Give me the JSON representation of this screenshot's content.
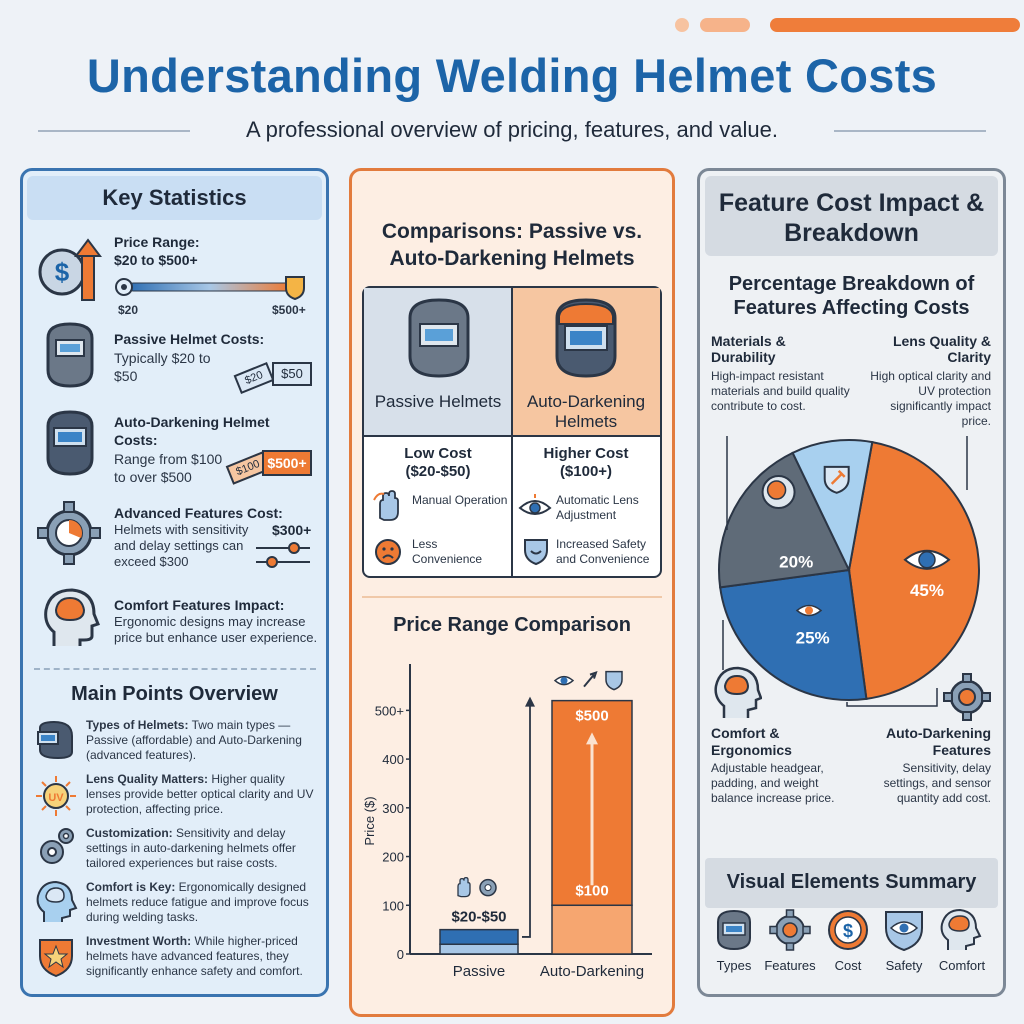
{
  "header": {
    "title": "Understanding Welding Helmet Costs",
    "subtitle": "A professional overview of pricing, features, and value."
  },
  "key_stats": {
    "title": "Key Statistics",
    "price_range": {
      "label": "Price Range:",
      "value": "$20 to $500+",
      "min": "$20",
      "max": "$500+"
    },
    "passive": {
      "label": "Passive Helmet Costs:",
      "text": "Typically $20 to $50",
      "tag1": "$20",
      "tag2": "$50"
    },
    "auto": {
      "label_bold": "Auto-Darkening Helmet Costs:",
      "text": "Range from $100 to over $500",
      "tag1": "$100",
      "tag2": "$500+"
    },
    "advanced": {
      "label": "Advanced Features Cost:",
      "text": "Helmets with sensitivity and delay settings can exceed $300",
      "tag": "$300+"
    },
    "comfort": {
      "label": "Comfort Features Impact:",
      "text": "Ergonomic designs may increase price but enhance user experience."
    }
  },
  "main_points": {
    "title": "Main Points Overview",
    "items": [
      {
        "bold": "Types of Helmets:",
        "text": " Two main types — Passive (affordable) and Auto-Darkening (advanced features)."
      },
      {
        "bold": "Lens Quality Matters:",
        "text": " Higher quality lenses provide better optical clarity and UV protection, affecting price.",
        "icon_text": "UV"
      },
      {
        "bold": "Customization:",
        "text": " Sensitivity and delay settings in auto-darkening helmets offer tailored experiences but raise costs."
      },
      {
        "bold": "Comfort is Key:",
        "text": " Ergonomically designed helmets reduce fatigue and improve focus during welding tasks."
      },
      {
        "bold": "Investment Worth:",
        "text": " While higher-priced helmets have advanced features, they significantly enhance safety and comfort."
      }
    ]
  },
  "comparison": {
    "title": "Comparisons: Passive vs. Auto-Darkening Helmets",
    "passive": {
      "name": "Passive Helmets",
      "cost": "Low Cost",
      "range": "($20-$50)",
      "f1": "Manual Operation",
      "f2": "Less Convenience"
    },
    "auto": {
      "name": "Auto-Darkening Helmets",
      "cost": "Higher Cost",
      "range": "($100+)",
      "f1": "Automatic Lens Adjustment",
      "f2": "Increased Safety and Convenience"
    }
  },
  "chart_data": [
    {
      "type": "bar",
      "title": "Price Range Comparison",
      "categories": [
        "Passive",
        "Auto-Darkening"
      ],
      "ylabel": "Price ($)",
      "yticks": [
        "0",
        "100",
        "200",
        "300",
        "400",
        "500+"
      ],
      "ylim": [
        0,
        550
      ],
      "ranges": [
        {
          "category": "Passive",
          "low": 20,
          "high": 50,
          "label": "$20-$50"
        },
        {
          "category": "Auto-Darkening",
          "low": 100,
          "high": 500,
          "label_low": "$100",
          "label_high": "$500"
        }
      ],
      "colors": {
        "passive": "#2f6fb3",
        "auto": "#ee7a34",
        "auto_light": "#f6a670"
      }
    },
    {
      "type": "pie",
      "title": "Percentage Breakdown of Features Affecting Costs",
      "slices": [
        {
          "label": "Lens Quality & Clarity",
          "value": 45,
          "color": "#ee7a34",
          "pct_label": "45%"
        },
        {
          "label": "Auto-Darkening Features",
          "value": 25,
          "color": "#2f6fb3",
          "pct_label": "25%"
        },
        {
          "label": "Comfort & Ergonomics",
          "value": 20,
          "color": "#5f6b78",
          "pct_label": "20%"
        },
        {
          "label": "Materials & Durability",
          "value": 10,
          "color": "#a8d0ef",
          "pct_label": ""
        }
      ]
    }
  ],
  "feature_impact": {
    "title": "Feature Cost Impact & Breakdown",
    "materials": {
      "title": "Materials & Durability",
      "text": "High-impact resistant materials and build quality contribute to cost."
    },
    "lens": {
      "title": "Lens Quality & Clarity",
      "text": "High optical clarity and UV protection significantly impact price."
    },
    "comfort": {
      "title": "Comfort & Ergonomics",
      "text": "Adjustable headgear, padding, and weight balance increase price."
    },
    "auto": {
      "title": "Auto-Darkening Features",
      "text": "Sensitivity, delay settings, and sensor quantity add cost."
    }
  },
  "visual_summary": {
    "title": "Visual Elements Summary",
    "items": [
      "Types",
      "Features",
      "Cost",
      "Safety",
      "Comfort"
    ],
    "cost_symbol": "$"
  },
  "icons": {
    "dollar": "$"
  }
}
